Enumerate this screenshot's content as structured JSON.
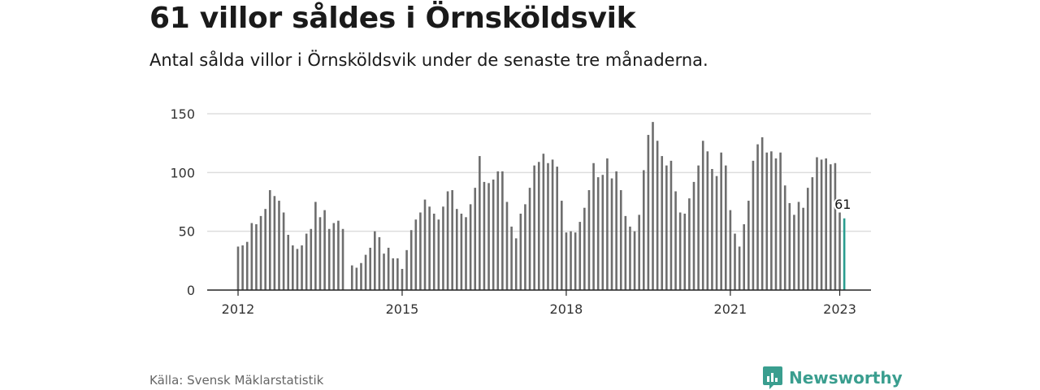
{
  "title": "61 villor såldes i Örnsköldsvik",
  "subtitle": "Antal sålda villor i Örnsköldsvik under de senaste tre månaderna.",
  "source": "Källa: Svensk Mäklarstatistik",
  "brand": {
    "name": "Newsworthy",
    "icon": "newsworthy-logo-icon"
  },
  "colors": {
    "bar": "#6e6e6e",
    "highlight": "#2a9d8f",
    "grid": "#dddddd",
    "axis": "#222222"
  },
  "chart_data": {
    "type": "bar",
    "x_start": "2012-01",
    "x_end": "2023-01",
    "xticks": [
      "2012",
      "2015",
      "2018",
      "2021",
      "2023"
    ],
    "yticks": [
      0,
      50,
      100,
      150
    ],
    "ylim": [
      0,
      150
    ],
    "grid": true,
    "highlight_last": true,
    "last_label": "61",
    "series": [
      {
        "values": [
          37,
          38,
          41,
          57,
          56,
          63,
          69,
          85,
          80,
          76,
          66,
          47,
          38,
          35,
          38,
          48,
          52,
          75,
          62,
          68,
          52,
          57,
          59,
          52,
          null,
          21,
          19,
          23,
          30,
          36,
          50,
          45,
          31,
          36,
          27,
          27,
          18,
          34,
          51,
          60,
          66,
          77,
          71,
          65,
          60,
          71,
          84,
          85,
          69,
          65,
          62,
          73,
          87,
          114,
          92,
          91,
          94,
          101,
          101,
          75,
          54,
          44,
          65,
          73,
          87,
          106,
          109,
          116,
          108,
          111,
          105,
          76,
          49,
          50,
          49,
          58,
          70,
          85,
          108,
          96,
          98,
          112,
          95,
          101,
          85,
          63,
          54,
          50,
          64,
          102,
          132,
          143,
          127,
          114,
          106,
          110,
          84,
          66,
          65,
          78,
          92,
          106,
          127,
          118,
          103,
          97,
          117,
          106,
          68,
          48,
          37,
          56,
          76,
          110,
          124,
          130,
          117,
          118,
          112,
          117,
          89,
          74,
          64,
          75,
          70,
          87,
          96,
          113,
          111,
          112,
          107,
          108,
          66,
          61
        ]
      }
    ]
  }
}
